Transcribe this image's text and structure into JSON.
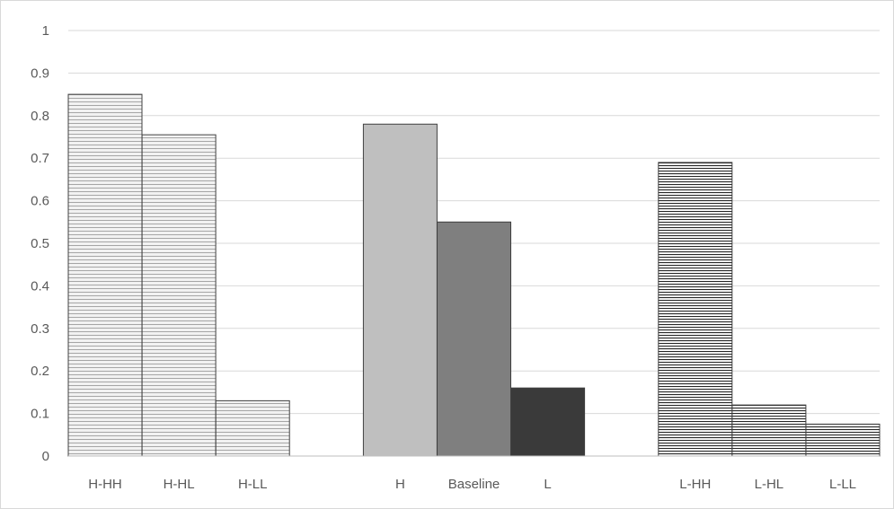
{
  "chart_data": {
    "type": "bar",
    "title": "",
    "xlabel": "",
    "ylabel": "",
    "ylim": [
      0,
      1
    ],
    "yticks": [
      "0",
      "0.1",
      "0.2",
      "0.3",
      "0.4",
      "0.5",
      "0.6",
      "0.7",
      "0.8",
      "0.9",
      "1"
    ],
    "grid": true,
    "legend": "none",
    "categories": [
      "H-HH",
      "H-HL",
      "H-LL",
      "",
      "H",
      "Baseline",
      "L",
      "",
      "L-HH",
      "L-HL",
      "L-LL"
    ],
    "values": [
      0.85,
      0.755,
      0.13,
      null,
      0.78,
      0.55,
      0.16,
      null,
      0.69,
      0.12,
      0.075
    ],
    "bar_styles": [
      {
        "fill": "hatch-light",
        "color": "#f2f2f2",
        "line": "#a6a6a6"
      },
      {
        "fill": "hatch-light",
        "color": "#f2f2f2",
        "line": "#a6a6a6"
      },
      {
        "fill": "hatch-light",
        "color": "#f2f2f2",
        "line": "#a6a6a6"
      },
      null,
      {
        "fill": "solid",
        "color": "#bfbfbf"
      },
      {
        "fill": "solid",
        "color": "#7f7f7f"
      },
      {
        "fill": "solid",
        "color": "#3a3a3a"
      },
      null,
      {
        "fill": "hatch-dark",
        "color": "#ffffff",
        "line": "#262626"
      },
      {
        "fill": "hatch-dark",
        "color": "#ffffff",
        "line": "#262626"
      },
      {
        "fill": "hatch-dark",
        "color": "#ffffff",
        "line": "#262626"
      }
    ],
    "colors": {
      "grid": "#d9d9d9",
      "axis": "#bfbfbf",
      "text": "#595959",
      "bar_outline": "#404040"
    }
  }
}
